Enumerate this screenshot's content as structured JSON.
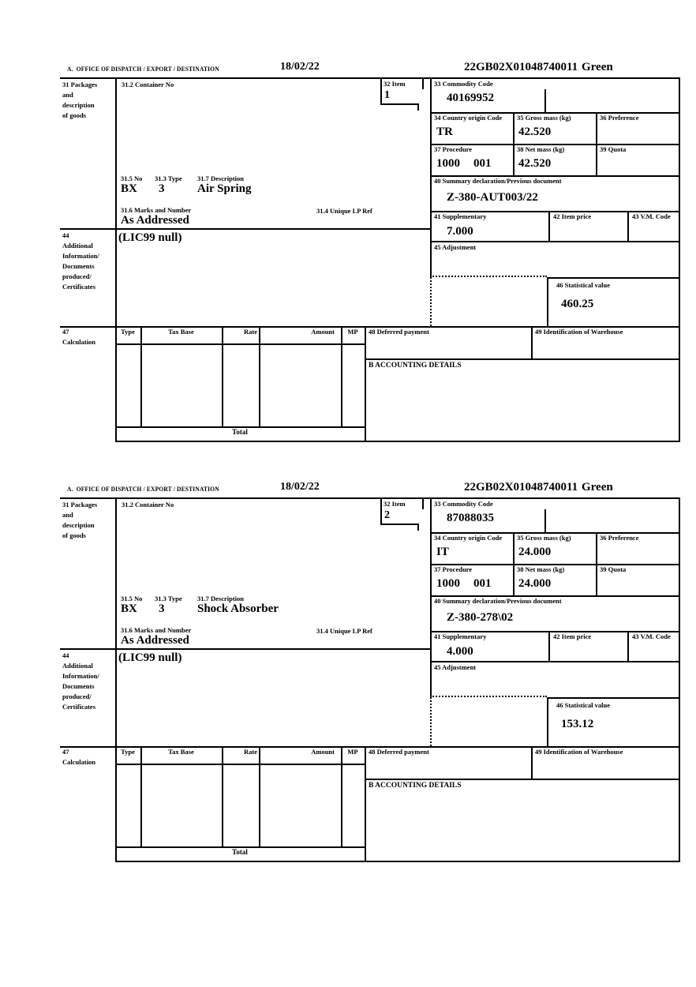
{
  "header": {
    "office": "A.  OFFICE OF DISPATCH / EXPORT / DESTINATION",
    "date": "18/02/22",
    "reference": "22GB02X01048740011",
    "status": "Green"
  },
  "labels": {
    "box31_lines": [
      "31 Packages",
      "and",
      "description",
      "of goods"
    ],
    "box31_2": "31.2 Container No",
    "box32": "32 Item",
    "box33": "33 Commodity Code",
    "box34": "34 Country origin Code",
    "box35": "35 Gross mass (kg)",
    "box36": "36 Preference",
    "box37": "37 Procedure",
    "box38": "38 Net mass (kg)",
    "box39": "39 Quota",
    "box40": "40 Summary declaration/Previous document",
    "box41": "41 Supplementary",
    "box42": "42 Item price",
    "box43": "43 V.M. Code",
    "box44_lines": [
      "44",
      "Additional",
      "Information/",
      "Documents",
      "produced/",
      "Certificates"
    ],
    "box45": "45 Adjustment",
    "box46": "46 Statistical value",
    "box47_lines": [
      "47",
      "Calculation"
    ],
    "box31_5": "31.5 No",
    "box31_3": "31.3 Type",
    "box31_7": "31.7 Description",
    "box31_6": "31.6 Marks and Number",
    "box31_4": "31.4 Unique LP Ref",
    "box48": "48 Deferred payment",
    "box49": "49 Identification of Warehouse",
    "accounting": "B ACCOUNTING DETAILS",
    "calc_columns": [
      "Type",
      "Tax Base",
      "Rate",
      "Amount",
      "MP"
    ],
    "total": "Total"
  },
  "sections": [
    {
      "item_number": "1",
      "commodity_code": "40169952",
      "country_origin": "TR",
      "gross_mass": "42.520",
      "procedure": "1000",
      "procedure_extra": "001",
      "net_mass": "42.520",
      "previous_document": "Z-380-AUT003/22",
      "supplementary": "7.000",
      "statistical_value": "460.25",
      "package_no": "BX",
      "package_type": "3",
      "description": "Air Spring",
      "marks": "As Addressed",
      "additional_info": "(LIC99 null)"
    },
    {
      "item_number": "2",
      "commodity_code": "87088035",
      "country_origin": "IT",
      "gross_mass": "24.000",
      "procedure": "1000",
      "procedure_extra": "001",
      "net_mass": "24.000",
      "previous_document": "Z-380-278\\02",
      "supplementary": "4.000",
      "statistical_value": "153.12",
      "package_no": "BX",
      "package_type": "3",
      "description": "Shock Absorber",
      "marks": "As Addressed",
      "additional_info": "(LIC99 null)"
    }
  ]
}
